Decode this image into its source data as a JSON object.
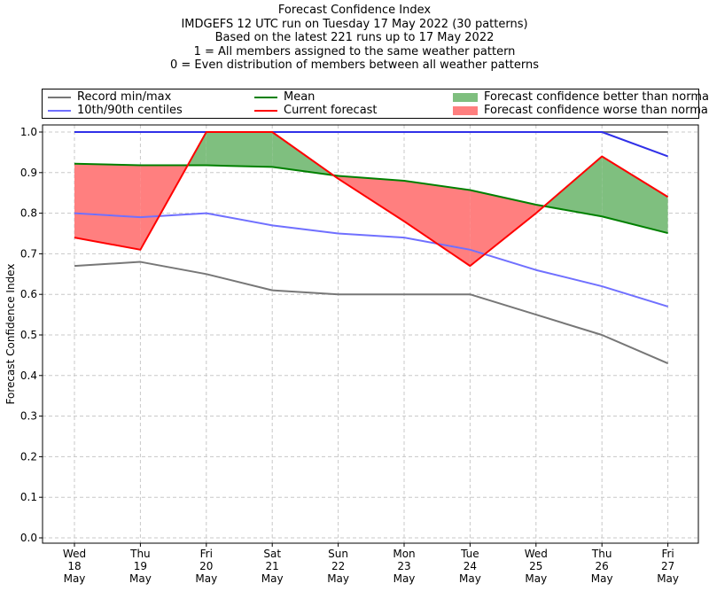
{
  "chart_data": {
    "type": "line",
    "title_lines": [
      "Forecast Confidence Index",
      "IMDGEFS 12 UTC run on Tuesday 17 May 2022 (30 patterns)",
      "Based on the latest 221 runs up to 17 May 2022",
      "1 = All members assigned to the same weather pattern",
      "0 = Even distribution of members between all weather patterns"
    ],
    "ylabel": "Forecast Confidence Index",
    "xlabel": "",
    "ylim": [
      0,
      1
    ],
    "yticks": [
      "0.0",
      "0.1",
      "0.2",
      "0.3",
      "0.4",
      "0.5",
      "0.6",
      "0.7",
      "0.8",
      "0.9",
      "1.0"
    ],
    "categories": [
      [
        "Wed",
        "18",
        "May"
      ],
      [
        "Thu",
        "19",
        "May"
      ],
      [
        "Fri",
        "20",
        "May"
      ],
      [
        "Sat",
        "21",
        "May"
      ],
      [
        "Sun",
        "22",
        "May"
      ],
      [
        "Mon",
        "23",
        "May"
      ],
      [
        "Tue",
        "24",
        "May"
      ],
      [
        "Wed",
        "25",
        "May"
      ],
      [
        "Thu",
        "26",
        "May"
      ],
      [
        "Fri",
        "27",
        "May"
      ]
    ],
    "grid": true,
    "legend_position": "top",
    "series": [
      {
        "name": "Record min/max",
        "key": "record_min",
        "color": "#777777",
        "values": [
          0.67,
          0.68,
          0.65,
          0.61,
          0.6,
          0.6,
          0.6,
          0.55,
          0.5,
          0.43
        ]
      },
      {
        "name": "Record min/max",
        "key": "record_max",
        "color": "#777777",
        "values": [
          1.0,
          1.0,
          1.0,
          1.0,
          1.0,
          1.0,
          1.0,
          1.0,
          1.0,
          1.0
        ]
      },
      {
        "name": "10th/90th centiles",
        "key": "p10",
        "color": "#7070ff",
        "values": [
          0.8,
          0.79,
          0.8,
          0.77,
          0.75,
          0.74,
          0.71,
          0.66,
          0.62,
          0.57
        ]
      },
      {
        "name": "10th/90th centiles",
        "key": "p90",
        "color": "#3030e8",
        "values": [
          1.0,
          1.0,
          1.0,
          1.0,
          1.0,
          1.0,
          1.0,
          1.0,
          1.0,
          0.94
        ]
      },
      {
        "name": "Mean",
        "key": "mean",
        "color": "#008000",
        "values": [
          0.922,
          0.918,
          0.918,
          0.914,
          0.892,
          0.88,
          0.857,
          0.821,
          0.792,
          0.751
        ]
      },
      {
        "name": "Current forecast",
        "key": "current",
        "color": "#ff0000",
        "values": [
          0.74,
          0.71,
          1.0,
          1.0,
          0.885,
          0.78,
          0.67,
          0.8,
          0.94,
          0.84
        ]
      }
    ],
    "fill_better_color": "#7fbf7f",
    "fill_worse_color": "#ff7f7f"
  },
  "legend": {
    "record": "Record min/max",
    "centiles": "10th/90th centiles",
    "mean": "Mean",
    "current": "Current forecast",
    "better": "Forecast confidence better than normal",
    "worse": "Forecast confidence worse than normal"
  }
}
